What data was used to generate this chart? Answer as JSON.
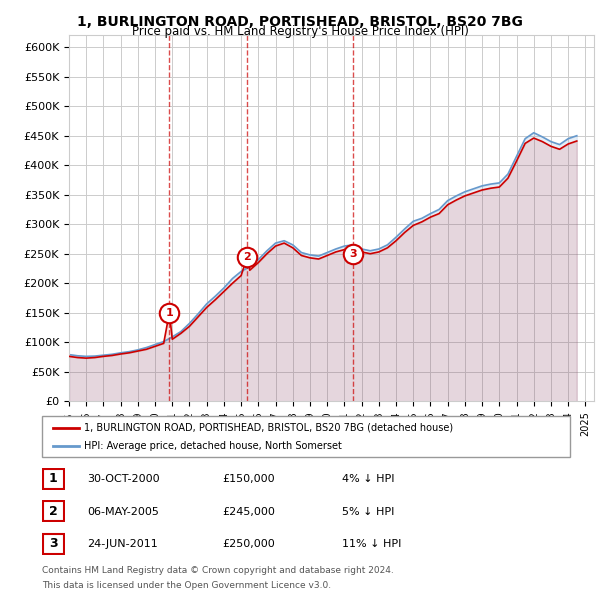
{
  "title": "1, BURLINGTON ROAD, PORTISHEAD, BRISTOL, BS20 7BG",
  "subtitle": "Price paid vs. HM Land Registry's House Price Index (HPI)",
  "legend_line1": "1, BURLINGTON ROAD, PORTISHEAD, BRISTOL, BS20 7BG (detached house)",
  "legend_line2": "HPI: Average price, detached house, North Somerset",
  "footer1": "Contains HM Land Registry data © Crown copyright and database right 2024.",
  "footer2": "This data is licensed under the Open Government Licence v3.0.",
  "transactions": [
    {
      "num": 1,
      "date": "30-OCT-2000",
      "price": "£150,000",
      "hpi": "4% ↓ HPI",
      "year": 2000.83
    },
    {
      "num": 2,
      "date": "06-MAY-2005",
      "price": "£245,000",
      "hpi": "5% ↓ HPI",
      "year": 2005.35
    },
    {
      "num": 3,
      "date": "24-JUN-2011",
      "price": "£250,000",
      "hpi": "11% ↓ HPI",
      "year": 2011.48
    }
  ],
  "transaction_values": [
    150000,
    245000,
    250000
  ],
  "ylim": [
    0,
    620000
  ],
  "yticks": [
    0,
    50000,
    100000,
    150000,
    200000,
    250000,
    300000,
    350000,
    400000,
    450000,
    500000,
    550000,
    600000
  ],
  "hpi_years": [
    1995,
    1995.5,
    1996,
    1996.5,
    1997,
    1997.5,
    1998,
    1998.5,
    1999,
    1999.5,
    2000,
    2000.5,
    2001,
    2001.5,
    2002,
    2002.5,
    2003,
    2003.5,
    2004,
    2004.5,
    2005,
    2005.5,
    2006,
    2006.5,
    2007,
    2007.5,
    2008,
    2008.5,
    2009,
    2009.5,
    2010,
    2010.5,
    2011,
    2011.5,
    2012,
    2012.5,
    2013,
    2013.5,
    2014,
    2014.5,
    2015,
    2015.5,
    2016,
    2016.5,
    2017,
    2017.5,
    2018,
    2018.5,
    2019,
    2019.5,
    2020,
    2020.5,
    2021,
    2021.5,
    2022,
    2022.5,
    2023,
    2023.5,
    2024,
    2024.5
  ],
  "hpi_values": [
    79000,
    77000,
    76000,
    76500,
    78000,
    79500,
    82000,
    84000,
    87000,
    91000,
    96000,
    101000,
    109000,
    118000,
    132000,
    148000,
    165000,
    178000,
    192000,
    208000,
    220000,
    228000,
    240000,
    255000,
    268000,
    272000,
    265000,
    252000,
    248000,
    246000,
    252000,
    258000,
    263000,
    265000,
    258000,
    255000,
    258000,
    265000,
    278000,
    292000,
    305000,
    310000,
    318000,
    325000,
    340000,
    348000,
    355000,
    360000,
    365000,
    368000,
    370000,
    385000,
    415000,
    445000,
    455000,
    448000,
    440000,
    435000,
    445000,
    450000
  ],
  "property_years": [
    1995,
    1995.5,
    1996,
    1996.5,
    1997,
    1997.5,
    1998,
    1998.5,
    1999,
    1999.5,
    2000,
    2000.5,
    2000.83,
    2001,
    2001.5,
    2002,
    2002.5,
    2003,
    2003.5,
    2004,
    2004.5,
    2005,
    2005.35,
    2005.5,
    2006,
    2006.5,
    2007,
    2007.5,
    2008,
    2008.5,
    2009,
    2009.5,
    2010,
    2010.5,
    2011,
    2011.48,
    2011.5,
    2012,
    2012.5,
    2013,
    2013.5,
    2014,
    2014.5,
    2015,
    2015.5,
    2016,
    2016.5,
    2017,
    2017.5,
    2018,
    2018.5,
    2019,
    2019.5,
    2020,
    2020.5,
    2021,
    2021.5,
    2022,
    2022.5,
    2023,
    2023.5,
    2024,
    2024.5
  ],
  "property_values": [
    76000,
    74000,
    73000,
    74000,
    76000,
    77500,
    80000,
    82000,
    85000,
    88000,
    93000,
    98000,
    150000,
    105000,
    115000,
    127000,
    143000,
    159000,
    172000,
    186000,
    200000,
    213000,
    245000,
    222000,
    235000,
    250000,
    263000,
    268000,
    260000,
    247000,
    243000,
    241000,
    247000,
    253000,
    257000,
    250000,
    260000,
    253000,
    250000,
    253000,
    260000,
    272000,
    286000,
    298000,
    304000,
    312000,
    318000,
    333000,
    341000,
    348000,
    353000,
    358000,
    361000,
    363000,
    378000,
    407000,
    437000,
    446000,
    440000,
    432000,
    427000,
    436000,
    441000
  ],
  "vline_years": [
    2000.83,
    2005.35,
    2011.48
  ],
  "red_color": "#cc0000",
  "blue_color": "#6699cc",
  "grid_color": "#cccccc",
  "bg_color": "#ffffff"
}
